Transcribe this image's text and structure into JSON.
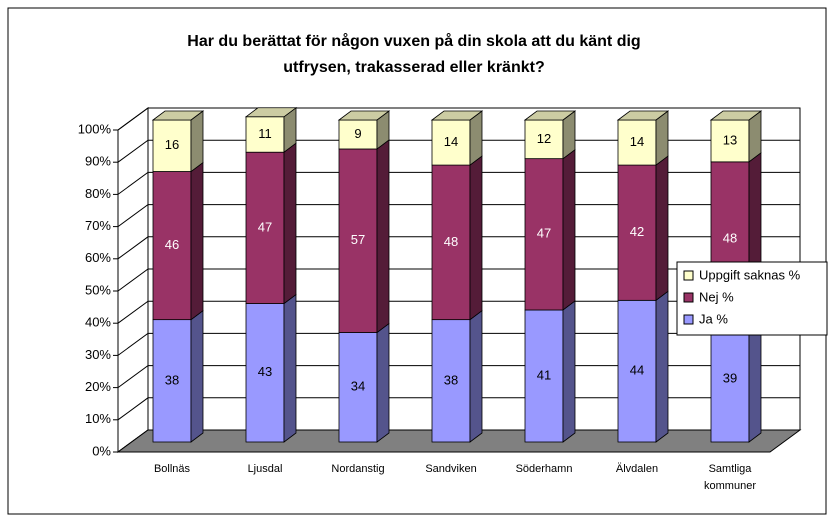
{
  "chart_data": {
    "type": "bar3d_stacked",
    "title": [
      "Har du berättat för någon vuxen på din skola att du känt dig",
      "utfrysen, trakasserad eller kränkt?"
    ],
    "categories": [
      "Bollnäs",
      "Ljusdal",
      "Nordanstig",
      "Sandviken",
      "Söderhamn",
      "Älvdalen",
      "Samtliga kommuner"
    ],
    "series": [
      {
        "name": "Ja %",
        "color": "#9999ff",
        "values": [
          38,
          43,
          34,
          38,
          41,
          44,
          39
        ]
      },
      {
        "name": "Nej %",
        "color": "#993366",
        "values": [
          46,
          47,
          57,
          48,
          47,
          42,
          48
        ]
      },
      {
        "name": "Uppgift saknas %",
        "color": "#ffffcc",
        "values": [
          16,
          11,
          9,
          14,
          12,
          14,
          13
        ]
      }
    ],
    "ylim": [
      0,
      100
    ],
    "yticks": [
      {
        "value": 0,
        "label": "0%"
      },
      {
        "value": 10,
        "label": "10%"
      },
      {
        "value": 20,
        "label": "20%"
      },
      {
        "value": 30,
        "label": "30%"
      },
      {
        "value": 40,
        "label": "40%"
      },
      {
        "value": 50,
        "label": "50%"
      },
      {
        "value": 60,
        "label": "60%"
      },
      {
        "value": 70,
        "label": "70%"
      },
      {
        "value": 80,
        "label": "80%"
      },
      {
        "value": 90,
        "label": "90%"
      },
      {
        "value": 100,
        "label": "100%"
      }
    ],
    "grid": true,
    "legend": "right"
  }
}
